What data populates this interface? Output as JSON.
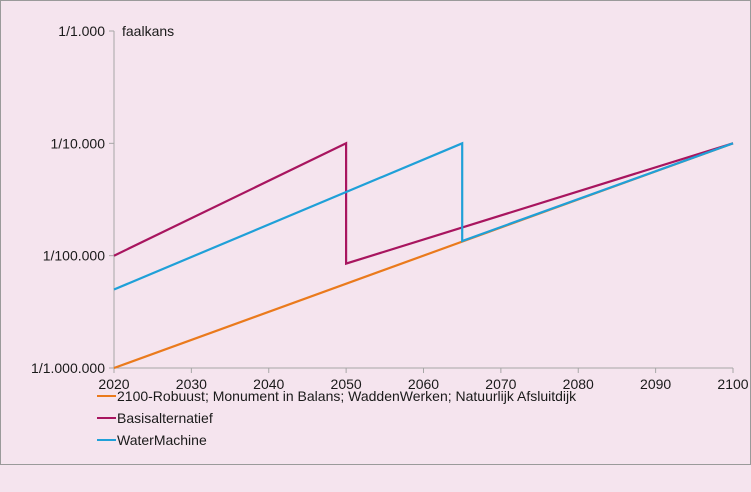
{
  "chart_data": {
    "type": "line",
    "ylabel": "faalkans",
    "xlabel": "",
    "x_ticks": [
      "2020",
      "2030",
      "2040",
      "2050",
      "2060",
      "2070",
      "2080",
      "2090",
      "2100"
    ],
    "xlim": [
      2020,
      2100
    ],
    "y_scale": "log",
    "y_ticks": [
      {
        "value": 0.001,
        "label": "1/1.000"
      },
      {
        "value": 0.0001,
        "label": "1/10.000"
      },
      {
        "value": 1e-05,
        "label": "1/100.000"
      },
      {
        "value": 1e-06,
        "label": "1/1.000.000"
      }
    ],
    "ylim": [
      1e-06,
      0.001
    ],
    "grid": false,
    "legend_position": "bottom-left",
    "series": [
      {
        "name": "2100-Robuust; Monument in Balans; WaddenWerken; Natuurlijk Afsluitdijk",
        "color": "#ea7a1c",
        "points": [
          [
            2020,
            1e-06
          ],
          [
            2100,
            0.0001
          ]
        ]
      },
      {
        "name": "Basisalternatief",
        "color": "#a8155f",
        "points": [
          [
            2020,
            1e-05
          ],
          [
            2050,
            0.0001
          ],
          [
            2050,
            8.5e-06
          ],
          [
            2100,
            0.0001
          ]
        ]
      },
      {
        "name": "WaterMachine",
        "color": "#1fa0d8",
        "points": [
          [
            2020,
            5e-06
          ],
          [
            2065,
            0.0001
          ],
          [
            2065,
            1.35e-05
          ],
          [
            2100,
            0.0001
          ]
        ]
      }
    ]
  }
}
